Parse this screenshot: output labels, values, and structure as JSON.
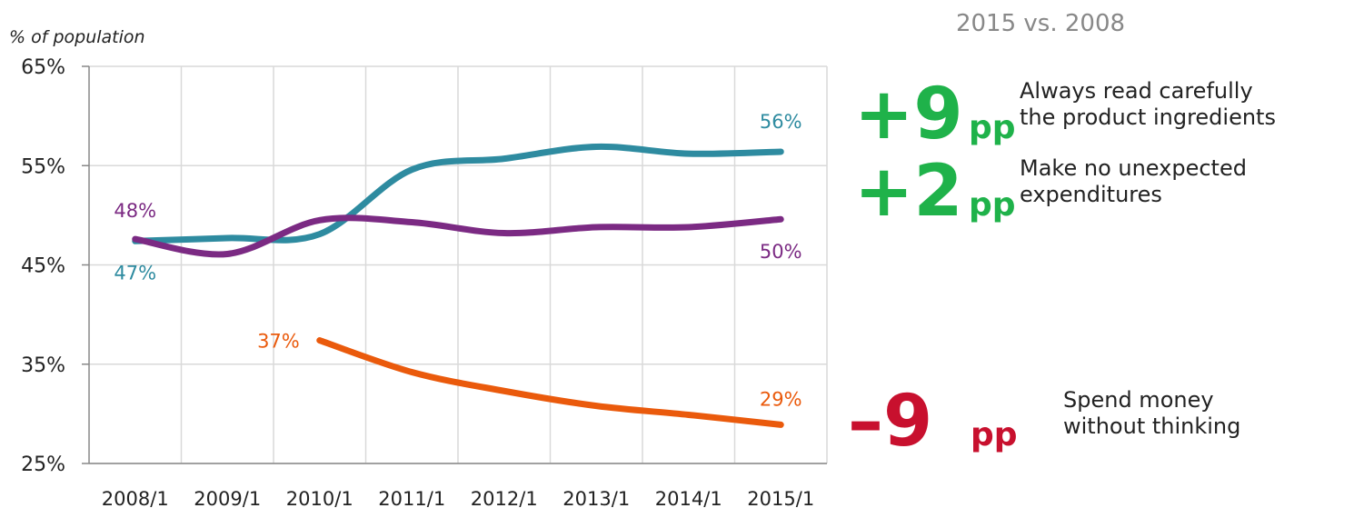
{
  "chart_data": {
    "type": "line",
    "y_axis_label": "% of population",
    "comparison": "2015 vs.  2008",
    "categories": [
      "2008/1",
      "2009/1",
      "2010/1",
      "2011/1",
      "2012/1",
      "2013/1",
      "2014/1",
      "2015/1"
    ],
    "ylim": [
      25,
      65
    ],
    "yticks": [
      {
        "value": 25,
        "label": "25%"
      },
      {
        "value": 35,
        "label": "35%"
      },
      {
        "value": 45,
        "label": "45%"
      },
      {
        "value": 55,
        "label": "55%"
      },
      {
        "value": 65,
        "label": "65%"
      }
    ],
    "grid": true,
    "change_unit": "pp",
    "series": [
      {
        "name": "Always read carefully\nthe product ingredients",
        "color": "#2e8ba0",
        "values": [
          47.4,
          47.7,
          48.1,
          54.6,
          55.7,
          56.9,
          56.2,
          56.4
        ],
        "value_labels": [
          "47%",
          null,
          null,
          null,
          null,
          null,
          null,
          "56%"
        ],
        "change_label": "+9",
        "change_color": "#1fb24a"
      },
      {
        "name": "Make no unexpected\nexpenditures",
        "color": "#7b2a83",
        "values": [
          47.6,
          46.1,
          49.5,
          49.3,
          48.2,
          48.8,
          48.8,
          49.6
        ],
        "value_labels": [
          "48%",
          null,
          null,
          null,
          null,
          null,
          null,
          "50%"
        ],
        "change_label": "+2",
        "change_color": "#1fb24a"
      },
      {
        "name": "Spend money\nwithout thinking",
        "color": "#ea5a0c",
        "values": [
          null,
          null,
          37.4,
          34.2,
          32.3,
          30.8,
          29.9,
          28.9
        ],
        "value_labels": [
          null,
          null,
          "37%",
          null,
          null,
          null,
          null,
          "29%"
        ],
        "change_label": "–9",
        "change_color": "#c8102e"
      }
    ]
  }
}
